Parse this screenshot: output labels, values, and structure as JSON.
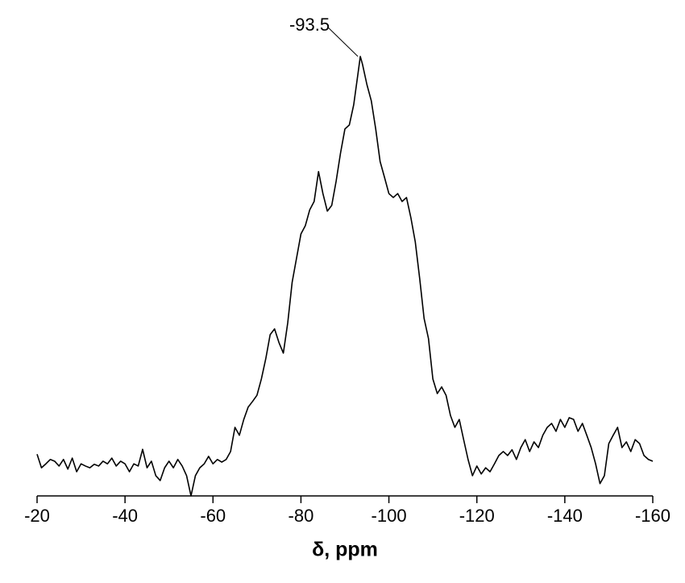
{
  "chart_data": {
    "type": "line",
    "xlabel": "δ, ppm",
    "xlim": [
      -20,
      -160
    ],
    "xticks": [
      -20,
      -40,
      -60,
      -80,
      -100,
      -120,
      -140,
      -160
    ],
    "ylim": [
      0,
      100
    ],
    "annotation": {
      "label": "-93.5",
      "x": -93.5,
      "y": 100
    },
    "series": [
      {
        "color": "#000000",
        "x": [
          -20,
          -21,
          -22,
          -23,
          -24,
          -25,
          -26,
          -27,
          -28,
          -29,
          -30,
          -31,
          -32,
          -33,
          -34,
          -35,
          -36,
          -37,
          -38,
          -39,
          -40,
          -41,
          -42,
          -43,
          -44,
          -45,
          -46,
          -47,
          -48,
          -49,
          -50,
          -51,
          -52,
          -53,
          -54,
          -55,
          -56,
          -57,
          -58,
          -59,
          -60,
          -61,
          -62,
          -63,
          -64,
          -65,
          -66,
          -67,
          -68,
          -69,
          -70,
          -71,
          -72,
          -73,
          -74,
          -75,
          -76,
          -77,
          -78,
          -79,
          -80,
          -81,
          -82,
          -83,
          -84,
          -85,
          -86,
          -87,
          -88,
          -89,
          -90,
          -91,
          -92,
          -93,
          -93.5,
          -94,
          -95,
          -96,
          -97,
          -98,
          -99,
          -100,
          -101,
          -102,
          -103,
          -104,
          -105,
          -106,
          -107,
          -108,
          -109,
          -110,
          -111,
          -112,
          -113,
          -114,
          -115,
          -116,
          -117,
          -118,
          -119,
          -120,
          -121,
          -122,
          -123,
          -124,
          -125,
          -126,
          -127,
          -128,
          -129,
          -130,
          -131,
          -132,
          -133,
          -134,
          -135,
          -136,
          -137,
          -138,
          -139,
          -140,
          -141,
          -142,
          -143,
          -144,
          -145,
          -146,
          -147,
          -148,
          -149,
          -150,
          -151,
          -152,
          -153,
          -154,
          -155,
          -156,
          -157,
          -158,
          -159,
          -160
        ],
        "values": [
          9.5,
          6.4,
          7.3,
          8.3,
          7.9,
          6.8,
          8.3,
          6.1,
          8.6,
          5.5,
          7.3,
          6.8,
          6.4,
          7.2,
          6.8,
          7.9,
          7.3,
          8.6,
          6.8,
          7.9,
          7.3,
          5.5,
          7.3,
          6.8,
          10.6,
          6.4,
          7.9,
          4.6,
          3.5,
          6.4,
          7.9,
          6.4,
          8.3,
          6.8,
          4.6,
          0,
          4.6,
          6.4,
          7.3,
          9.0,
          7.3,
          8.3,
          7.7,
          8.3,
          10.1,
          15.6,
          13.8,
          17.4,
          20.2,
          21.5,
          22.9,
          26.6,
          31.2,
          36.7,
          38.0,
          34.9,
          32.5,
          39.4,
          48.6,
          54.1,
          59.6,
          61.5,
          65.1,
          67.0,
          73.8,
          68.8,
          64.8,
          66.1,
          71.6,
          78.0,
          83.5,
          84.4,
          89.0,
          96.3,
          100,
          98.2,
          93.6,
          89.9,
          83.5,
          76.1,
          72.5,
          68.8,
          67.9,
          68.8,
          67.0,
          67.9,
          63.3,
          57.8,
          49.5,
          40.4,
          35.8,
          26.6,
          23.3,
          24.8,
          22.9,
          18.3,
          15.6,
          17.4,
          12.8,
          8.3,
          4.6,
          6.8,
          5.0,
          6.4,
          5.5,
          7.3,
          9.2,
          10.1,
          9.2,
          10.5,
          8.3,
          11.0,
          12.8,
          10.1,
          12.3,
          11.0,
          13.8,
          15.6,
          16.5,
          14.7,
          17.4,
          15.6,
          17.8,
          17.4,
          14.7,
          16.5,
          13.8,
          11.0,
          7.3,
          2.8,
          4.6,
          11.9,
          13.8,
          15.6,
          11.0,
          12.3,
          10.1,
          12.8,
          11.9,
          9.2,
          8.3,
          7.9
        ]
      }
    ]
  }
}
